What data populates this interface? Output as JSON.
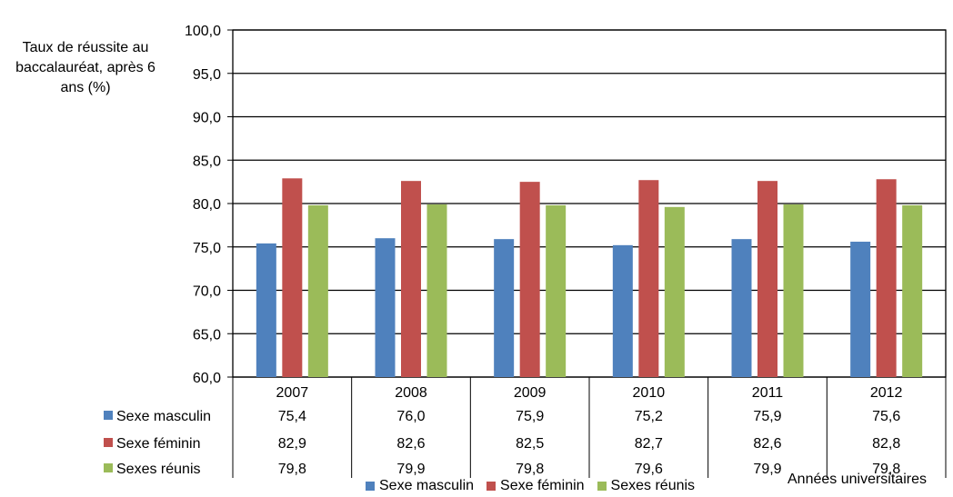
{
  "chart_data": {
    "type": "bar",
    "title": "",
    "ylabel": "Taux de réussite au\nbaccalauréat, après 6\nans (%)",
    "xlabel": "Années universitaires",
    "ylim": [
      60,
      100
    ],
    "y_ticks": [
      "100,0",
      "95,0",
      "90,0",
      "85,0",
      "80,0",
      "75,0",
      "70,0",
      "65,0",
      "60,0"
    ],
    "grid": true,
    "legend": "bottom",
    "categories": [
      "2007",
      "2008",
      "2009",
      "2010",
      "2011",
      "2012"
    ],
    "series": [
      {
        "name": "Sexe masculin",
        "color": "#4f81bd",
        "values": [
          75.4,
          76.0,
          75.9,
          75.2,
          75.9,
          75.6
        ],
        "labels": [
          "75,4",
          "76,0",
          "75,9",
          "75,2",
          "75,9",
          "75,6"
        ]
      },
      {
        "name": "Sexe féminin",
        "color": "#c0504d",
        "values": [
          82.9,
          82.6,
          82.5,
          82.7,
          82.6,
          82.8
        ],
        "labels": [
          "82,9",
          "82,6",
          "82,5",
          "82,7",
          "82,6",
          "82,8"
        ]
      },
      {
        "name": "Sexes réunis",
        "color": "#9bbb59",
        "values": [
          79.8,
          79.9,
          79.8,
          79.6,
          79.9,
          79.8
        ],
        "labels": [
          "79,8",
          "79,9",
          "79,8",
          "79,6",
          "79,9",
          "79,8"
        ]
      }
    ]
  }
}
